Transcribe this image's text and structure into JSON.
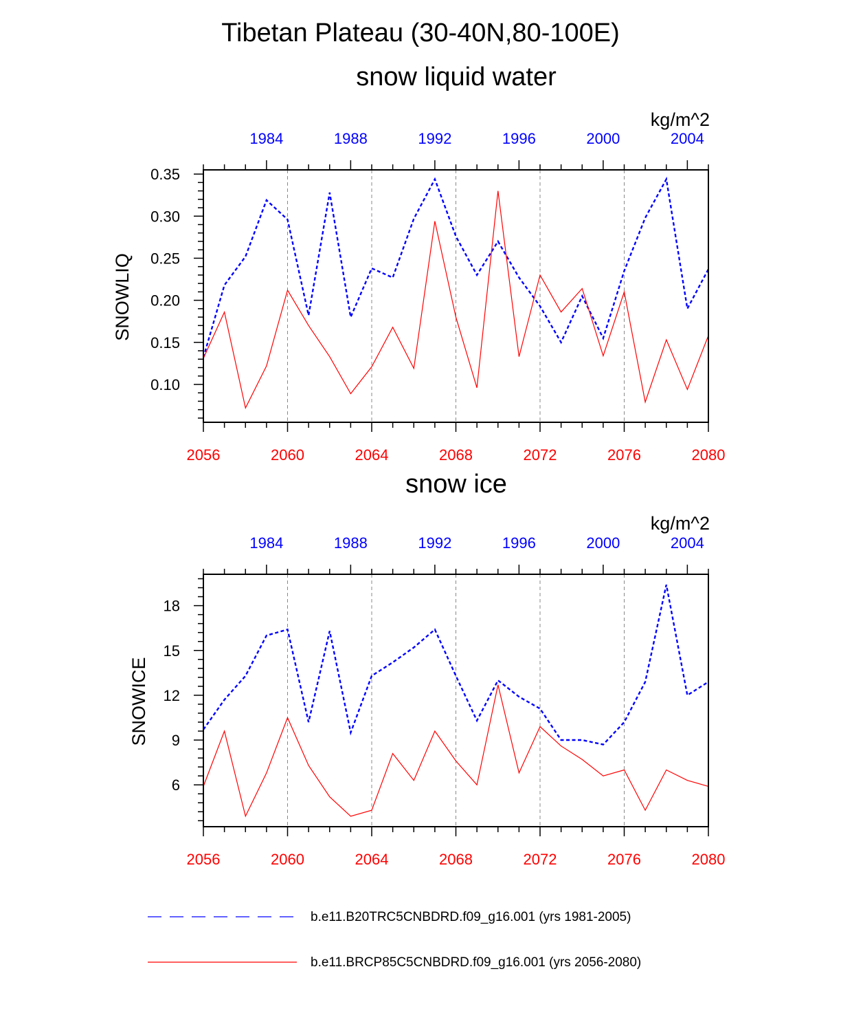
{
  "figure": {
    "title": "Tibetan Plateau (30-40N,80-100E)"
  },
  "colors": {
    "hist": "#0000ff",
    "future": "#ff0000",
    "grid": "#888888"
  },
  "legend": [
    {
      "label": "b.e11.B20TRC5CNBDRD.f09_g16.001 (yrs 1981-2005)",
      "style": "dashed",
      "color": "#0000ff"
    },
    {
      "label": "b.e11.BRCP85C5CNBDRD.f09_g16.001 (yrs 2056-2080)",
      "style": "solid",
      "color": "#ff0000"
    }
  ],
  "chart_data": [
    {
      "type": "line",
      "title": "snow liquid water",
      "units": "kg/m^2",
      "ylabel": "SNOWLIQ",
      "ylim": [
        0.055,
        0.355
      ],
      "yticks": [
        0.1,
        0.15,
        0.2,
        0.25,
        0.3,
        0.35
      ],
      "ytick_labels": [
        "0.10",
        "0.15",
        "0.20",
        "0.25",
        "0.30",
        "0.35"
      ],
      "x_bottom_ticks": [
        "2056",
        "2060",
        "2064",
        "2068",
        "2072",
        "2076",
        "2080"
      ],
      "x_top_ticks": [
        "1984",
        "1988",
        "1992",
        "1996",
        "2000",
        "2004"
      ],
      "grid": "vertical dashed at bottom-axis major ticks",
      "series": [
        {
          "name": "b.e11.B20TRC5CNBDRD.f09_g16.001 (yrs 1981-2005)",
          "x": [
            1981,
            1982,
            1983,
            1984,
            1985,
            1986,
            1987,
            1988,
            1989,
            1990,
            1991,
            1992,
            1993,
            1994,
            1995,
            1996,
            1997,
            1998,
            1999,
            2000,
            2001,
            2002,
            2003,
            2004,
            2005
          ],
          "values": [
            0.132,
            0.218,
            0.252,
            0.319,
            0.296,
            0.182,
            0.328,
            0.18,
            0.238,
            0.227,
            0.297,
            0.344,
            0.276,
            0.23,
            0.27,
            0.227,
            0.193,
            0.15,
            0.205,
            0.155,
            0.235,
            0.298,
            0.344,
            0.19,
            0.237
          ]
        },
        {
          "name": "b.e11.BRCP85C5CNBDRD.f09_g16.001 (yrs 2056-2080)",
          "x": [
            2056,
            2057,
            2058,
            2059,
            2060,
            2061,
            2062,
            2063,
            2064,
            2065,
            2066,
            2067,
            2068,
            2069,
            2070,
            2071,
            2072,
            2073,
            2074,
            2075,
            2076,
            2077,
            2078,
            2079,
            2080
          ],
          "values": [
            0.131,
            0.186,
            0.072,
            0.122,
            0.212,
            0.17,
            0.133,
            0.089,
            0.121,
            0.168,
            0.119,
            0.294,
            0.18,
            0.096,
            0.33,
            0.133,
            0.23,
            0.186,
            0.214,
            0.134,
            0.21,
            0.079,
            0.153,
            0.094,
            0.158
          ]
        }
      ]
    },
    {
      "type": "line",
      "title": "snow ice",
      "units": "kg/m^2",
      "ylabel": "SNOWICE",
      "ylim": [
        3.2,
        20.1
      ],
      "yticks": [
        6,
        9,
        12,
        15,
        18
      ],
      "ytick_labels": [
        "6",
        "9",
        "12",
        "15",
        "18"
      ],
      "x_bottom_ticks": [
        "2056",
        "2060",
        "2064",
        "2068",
        "2072",
        "2076",
        "2080"
      ],
      "x_top_ticks": [
        "1984",
        "1988",
        "1992",
        "1996",
        "2000",
        "2004"
      ],
      "grid": "vertical dashed at bottom-axis major ticks",
      "series": [
        {
          "name": "b.e11.B20TRC5CNBDRD.f09_g16.001 (yrs 1981-2005)",
          "x": [
            1981,
            1982,
            1983,
            1984,
            1985,
            1986,
            1987,
            1988,
            1989,
            1990,
            1991,
            1992,
            1993,
            1994,
            1995,
            1996,
            1997,
            1998,
            1999,
            2000,
            2001,
            2002,
            2003,
            2004,
            2005
          ],
          "values": [
            9.7,
            11.7,
            13.3,
            16.0,
            16.4,
            10.2,
            16.3,
            9.5,
            13.3,
            14.2,
            15.2,
            16.4,
            13.3,
            10.3,
            13.0,
            11.9,
            11.1,
            9.0,
            9.0,
            8.7,
            10.2,
            12.9,
            19.4,
            12.0,
            12.9
          ]
        },
        {
          "name": "b.e11.BRCP85C5CNBDRD.f09_g16.001 (yrs 2056-2080)",
          "x": [
            2056,
            2057,
            2058,
            2059,
            2060,
            2061,
            2062,
            2063,
            2064,
            2065,
            2066,
            2067,
            2068,
            2069,
            2070,
            2071,
            2072,
            2073,
            2074,
            2075,
            2076,
            2077,
            2078,
            2079,
            2080
          ],
          "values": [
            5.9,
            9.6,
            3.9,
            6.8,
            10.5,
            7.3,
            5.2,
            3.9,
            4.3,
            8.1,
            6.3,
            9.6,
            7.6,
            6.0,
            12.7,
            6.8,
            9.9,
            8.6,
            7.7,
            6.6,
            7.0,
            4.3,
            7.0,
            6.3,
            5.9
          ]
        }
      ]
    }
  ]
}
